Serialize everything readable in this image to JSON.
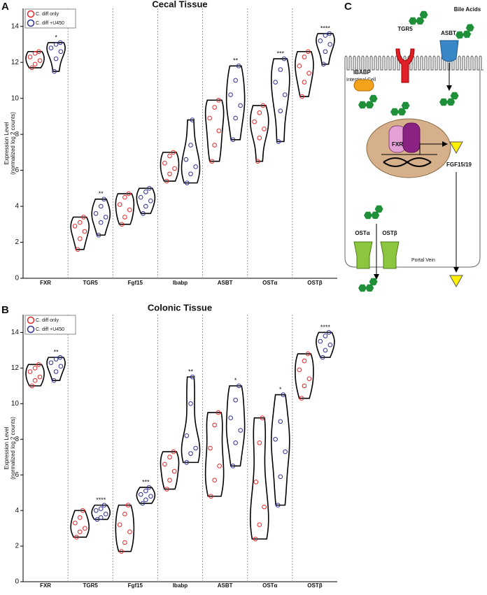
{
  "chart_data": [
    {
      "panel": "A",
      "type": "violin",
      "title": "Cecal Tissue",
      "ylabel": [
        "Expression Level",
        "(normalized log 2 counts)"
      ],
      "categories": [
        "FXR",
        "TGR5",
        "Fgf15",
        "Ibabp",
        "ASBT",
        "OSTα",
        "OSTβ"
      ],
      "series": [
        {
          "name": "C. diff only",
          "color": "#e8262a",
          "values": [
            [
              11.7,
              11.9,
              12.1,
              12.3,
              12.5,
              12.6
            ],
            [
              1.6,
              2.2,
              2.6,
              2.9,
              3.1,
              3.4
            ],
            [
              3.0,
              3.4,
              3.8,
              4.1,
              4.5,
              4.7
            ],
            [
              5.4,
              5.8,
              6.1,
              6.4,
              6.8,
              7.0
            ],
            [
              6.5,
              7.4,
              8.2,
              8.9,
              9.5,
              9.9
            ],
            [
              6.5,
              7.8,
              8.3,
              8.7,
              9.2,
              9.6
            ],
            [
              10.1,
              10.9,
              11.4,
              11.8,
              12.3,
              12.6
            ]
          ]
        },
        {
          "name": "C. diff +U450",
          "color": "#2e3192",
          "values": [
            [
              11.5,
              12.2,
              12.6,
              12.8,
              13.0,
              13.1
            ],
            [
              2.4,
              3.1,
              3.4,
              3.6,
              4.0,
              4.4
            ],
            [
              3.6,
              4.0,
              4.3,
              4.5,
              4.8,
              5.0
            ],
            [
              5.3,
              5.8,
              6.2,
              6.6,
              7.4,
              8.8
            ],
            [
              7.7,
              8.9,
              9.6,
              10.2,
              11.0,
              11.8
            ],
            [
              7.6,
              9.3,
              10.2,
              10.9,
              11.6,
              12.2
            ],
            [
              11.9,
              12.6,
              13.0,
              13.2,
              13.5,
              13.6
            ]
          ]
        }
      ],
      "annotations": [
        "*",
        "**",
        null,
        null,
        "**",
        "***",
        "****"
      ],
      "ylim": [
        0,
        15
      ],
      "yticks": [
        0,
        2,
        4,
        6,
        8,
        10,
        12,
        14
      ],
      "category_separators": true,
      "legend": "upper-left"
    },
    {
      "panel": "B",
      "type": "violin",
      "title": "Colonic Tissue",
      "ylabel": [
        "Expression Level",
        "(normalized log 2 counts)"
      ],
      "categories": [
        "FXR",
        "TGR5",
        "Fgf15",
        "Ibabp",
        "ASBT",
        "OSTα",
        "OSTβ"
      ],
      "series": [
        {
          "name": "C. diff only",
          "color": "#e8262a",
          "values": [
            [
              11.0,
              11.3,
              11.5,
              11.8,
              12.0,
              12.2
            ],
            [
              2.5,
              2.8,
              3.0,
              3.3,
              3.6,
              4.0
            ],
            [
              1.7,
              2.2,
              2.8,
              3.2,
              3.8,
              4.3
            ],
            [
              5.2,
              5.7,
              6.2,
              6.6,
              7.0,
              7.3
            ],
            [
              4.8,
              5.7,
              6.5,
              7.5,
              8.8,
              9.5
            ],
            [
              2.4,
              3.2,
              4.2,
              5.6,
              7.8,
              9.2
            ],
            [
              10.3,
              11.0,
              11.4,
              11.9,
              12.4,
              12.8
            ]
          ]
        },
        {
          "name": "C. diff +U450",
          "color": "#2e3192",
          "values": [
            [
              11.3,
              11.8,
              12.1,
              12.3,
              12.5,
              12.6
            ],
            [
              3.5,
              3.6,
              3.8,
              4.0,
              4.1,
              4.3
            ],
            [
              4.4,
              4.6,
              4.8,
              4.9,
              5.1,
              5.3
            ],
            [
              6.7,
              7.2,
              7.5,
              8.2,
              10.0,
              11.5
            ],
            [
              6.5,
              7.8,
              8.5,
              9.2,
              10.2,
              11.0
            ],
            [
              4.3,
              5.9,
              7.3,
              8.0,
              9.0,
              10.5
            ],
            [
              12.6,
              13.0,
              13.3,
              13.5,
              13.8,
              14.0
            ]
          ]
        }
      ],
      "annotations": [
        "**",
        "****",
        "***",
        "**",
        "*",
        "*",
        "****"
      ],
      "ylim": [
        0,
        15
      ],
      "yticks": [
        0,
        2,
        4,
        6,
        8,
        10,
        12,
        14
      ],
      "category_separators": true,
      "legend": "upper-left"
    }
  ],
  "diagram": {
    "panel": "C",
    "tgr5": "TGR5",
    "bile_acids": "Bile Acids",
    "asbt": "ASBT",
    "cell": "Intestinal Cell",
    "ibabp": "IBABP",
    "fxr": "FXR",
    "fgf": "FGF15/19",
    "ost_alpha": "OSTα",
    "ost_beta": "OSTβ",
    "portal_vein": "Portal Vein"
  }
}
